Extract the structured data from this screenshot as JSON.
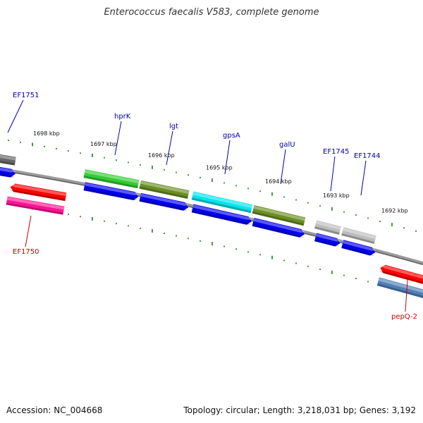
{
  "title": "Enterococcus faecalis V583, complete genome",
  "footer": {
    "accession": "Accession: NC_004668",
    "summary": "Topology: circular; Length: 3,218,031 bp; Genes: 3,192"
  },
  "colors": {
    "backbone": "#8a8a8a",
    "tick": "#1f7a1f",
    "label_blue": "#0000aa",
    "label_red": "#cc0000"
  },
  "kbp_labels": [
    "1698 kbp",
    "1697 kbp",
    "1696 kbp",
    "1695 kbp",
    "1694 kbp",
    "1693 kbp",
    "1692 kbp"
  ],
  "genes": [
    {
      "name": "EF1751",
      "strand": "forward",
      "color": "#666666",
      "label_color": "#0000aa"
    },
    {
      "name": "hprK",
      "strand": "forward",
      "color": "#33cc33",
      "label_color": "#0000aa"
    },
    {
      "name": "lgt",
      "strand": "forward",
      "color": "#6b8e23",
      "label_color": "#0000aa"
    },
    {
      "name": "gpsA",
      "strand": "forward",
      "color": "#00e5ee",
      "label_color": "#0000aa"
    },
    {
      "name": "galU",
      "strand": "forward",
      "color": "#6b8e23",
      "label_color": "#0000aa"
    },
    {
      "name": "EF1745",
      "strand": "forward",
      "color": "#bdbdbd",
      "label_color": "#0000aa"
    },
    {
      "name": "EF1744",
      "strand": "forward",
      "color": "#bdbdbd",
      "label_color": "#0000aa"
    },
    {
      "name": "EF1750",
      "strand": "reverse",
      "color": "#ff1493",
      "label_color": "#cc0000"
    },
    {
      "name": "pepQ-2",
      "strand": "reverse",
      "color": "#ff0000",
      "label_color": "#cc0000"
    }
  ]
}
